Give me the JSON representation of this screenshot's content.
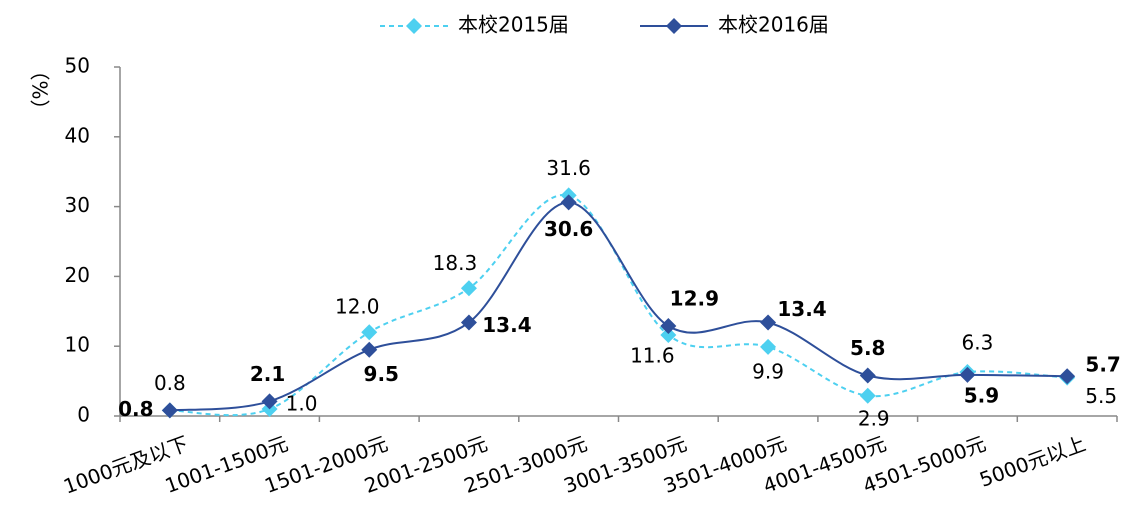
{
  "chart_data": {
    "type": "line",
    "y_label": "（%）",
    "categories": [
      "1000元及以下",
      "1001-1500元",
      "1501-2000元",
      "2001-2500元",
      "2501-3000元",
      "3001-3500元",
      "3501-4000元",
      "4001-4500元",
      "4501-5000元",
      "5000元以上"
    ],
    "series": [
      {
        "name": "本校2015届",
        "color": "#4dd0f0",
        "dashed": true,
        "values": [
          0.8,
          1.0,
          12.0,
          18.3,
          31.6,
          11.6,
          9.9,
          2.9,
          6.3,
          5.5
        ],
        "value_labels": [
          "0.8",
          "1.0",
          "12.0",
          "18.3",
          "31.6",
          "11.6",
          "9.9",
          "2.9",
          "6.3",
          "5.5"
        ]
      },
      {
        "name": "本校2016届",
        "color": "#2e4f9a",
        "dashed": false,
        "values": [
          0.8,
          2.1,
          9.5,
          13.4,
          30.6,
          12.9,
          13.4,
          5.8,
          5.9,
          5.7
        ],
        "value_labels": [
          "0.8",
          "2.1",
          "9.5",
          "13.4",
          "30.6",
          "12.9",
          "13.4",
          "5.8",
          "5.9",
          "5.7"
        ]
      }
    ],
    "ylim": [
      0,
      50
    ],
    "yticks": [
      0,
      10,
      20,
      30,
      40,
      50
    ],
    "grid": false,
    "legend": "top"
  }
}
